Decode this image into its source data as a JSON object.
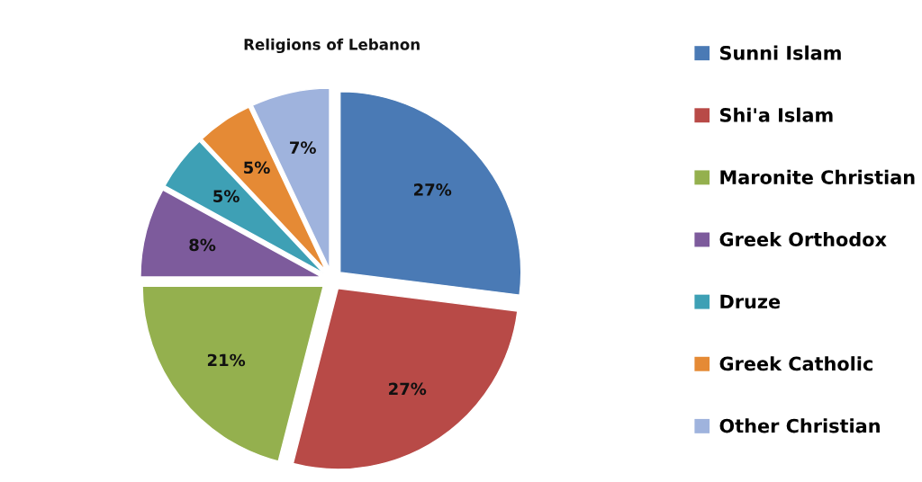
{
  "chart_data": {
    "type": "pie",
    "title": "Religions of Lebanon",
    "categories": [
      "Sunni Islam",
      "Shi'a Islam",
      "Maronite Christian",
      "Greek Orthodox",
      "Druze",
      "Greek Catholic",
      "Other Christian"
    ],
    "values": [
      27,
      27,
      21,
      8,
      5,
      5,
      7
    ],
    "colors": [
      "#4a7ab5",
      "#b84a47",
      "#94b04e",
      "#7d5b9c",
      "#3ea0b5",
      "#e58a35",
      "#9fb3dd"
    ],
    "value_labels": [
      "27%",
      "27%",
      "21%",
      "8%",
      "5%",
      "5%",
      "7%"
    ],
    "legend": "right"
  }
}
